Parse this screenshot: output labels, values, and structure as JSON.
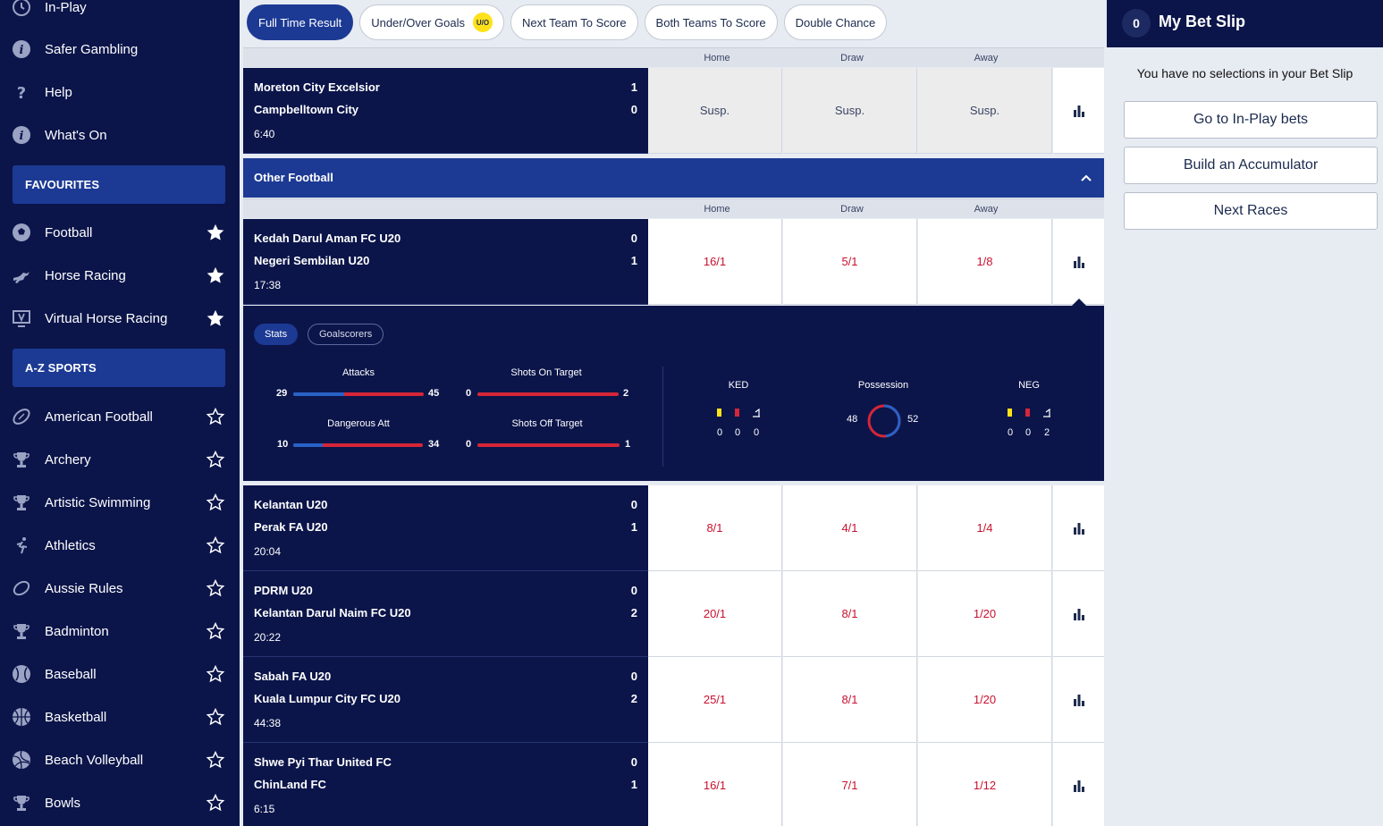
{
  "sidebar": {
    "top_items": [
      {
        "label": "In-Play",
        "icon": "clock-icon"
      },
      {
        "label": "Safer Gambling",
        "icon": "info-icon"
      },
      {
        "label": "Help",
        "icon": "question-icon"
      },
      {
        "label": "What's On",
        "icon": "info-icon"
      }
    ],
    "favourites_header": "FAVOURITES",
    "favourites": [
      {
        "label": "Football",
        "icon": "football-icon"
      },
      {
        "label": "Horse Racing",
        "icon": "horse-icon"
      },
      {
        "label": "Virtual Horse Racing",
        "icon": "virtual-icon"
      }
    ],
    "az_header": "A-Z SPORTS",
    "sports": [
      {
        "label": "American Football",
        "icon": "american-football-icon"
      },
      {
        "label": "Archery",
        "icon": "trophy-icon"
      },
      {
        "label": "Artistic Swimming",
        "icon": "trophy-icon"
      },
      {
        "label": "Athletics",
        "icon": "runner-icon"
      },
      {
        "label": "Aussie Rules",
        "icon": "aussie-ball-icon"
      },
      {
        "label": "Badminton",
        "icon": "trophy-icon"
      },
      {
        "label": "Baseball",
        "icon": "baseball-icon"
      },
      {
        "label": "Basketball",
        "icon": "basketball-icon"
      },
      {
        "label": "Beach Volleyball",
        "icon": "volleyball-icon"
      },
      {
        "label": "Bowls",
        "icon": "trophy-icon"
      }
    ]
  },
  "tabs": [
    {
      "label": "Full Time Result",
      "active": true
    },
    {
      "label": "Under/Over Goals",
      "badge": "U/O"
    },
    {
      "label": "Next Team To Score"
    },
    {
      "label": "Both Teams To Score"
    },
    {
      "label": "Double Chance"
    }
  ],
  "columns": {
    "home": "Home",
    "draw": "Draw",
    "away": "Away"
  },
  "top_match": {
    "home": "Moreton City Excelsior",
    "home_score": "1",
    "away": "Campbelltown City",
    "away_score": "0",
    "time": "6:40",
    "odds": [
      "Susp.",
      "Susp.",
      "Susp."
    ]
  },
  "section": {
    "title": "Other Football"
  },
  "expanded_match": {
    "home": "Kedah Darul Aman FC U20",
    "home_score": "0",
    "away": "Negeri Sembilan U20",
    "away_score": "1",
    "time": "17:38",
    "odds": [
      "16/1",
      "5/1",
      "1/8"
    ]
  },
  "stats_panel": {
    "tabs": [
      "Stats",
      "Goalscorers"
    ],
    "attacks": {
      "label": "Attacks",
      "home": 29,
      "away": 45
    },
    "shots_on_target": {
      "label": "Shots On Target",
      "home": 0,
      "away": 2
    },
    "dangerous_att": {
      "label": "Dangerous Att",
      "home": 10,
      "away": 34
    },
    "shots_off_target": {
      "label": "Shots Off Target",
      "home": 0,
      "away": 1
    },
    "home_abbr": "KED",
    "away_abbr": "NEG",
    "possession_label": "Possession",
    "possession_home": 48,
    "possession_away": 52,
    "home_cards": {
      "yellow": "0",
      "red": "0",
      "corners": "0"
    },
    "away_cards": {
      "yellow": "0",
      "red": "0",
      "corners": "2"
    }
  },
  "matches": [
    {
      "home": "Kelantan U20",
      "home_score": "0",
      "away": "Perak FA U20",
      "away_score": "1",
      "time": "20:04",
      "odds": [
        "8/1",
        "4/1",
        "1/4"
      ]
    },
    {
      "home": "PDRM U20",
      "home_score": "0",
      "away": "Kelantan Darul Naim FC U20",
      "away_score": "2",
      "time": "20:22",
      "odds": [
        "20/1",
        "8/1",
        "1/20"
      ]
    },
    {
      "home": "Sabah FA U20",
      "home_score": "0",
      "away": "Kuala Lumpur City FC U20",
      "away_score": "2",
      "time": "44:38",
      "odds": [
        "25/1",
        "8/1",
        "1/20"
      ]
    },
    {
      "home": "Shwe Pyi Thar United FC",
      "home_score": "0",
      "away": "ChinLand FC",
      "away_score": "1",
      "time": "6:15",
      "odds": [
        "16/1",
        "7/1",
        "1/12"
      ]
    }
  ],
  "betslip": {
    "count": "0",
    "title": "My Bet Slip",
    "empty_text": "You have no selections in your Bet Slip",
    "buttons": [
      "Go to In-Play bets",
      "Build an Accumulator",
      "Next Races"
    ]
  },
  "colors": {
    "navy": "#0b154a",
    "royal": "#1c3a94",
    "odds_red": "#c8102e",
    "home_bar": "#2862c7",
    "away_bar": "#d72638",
    "yellow": "#ffe11a"
  }
}
